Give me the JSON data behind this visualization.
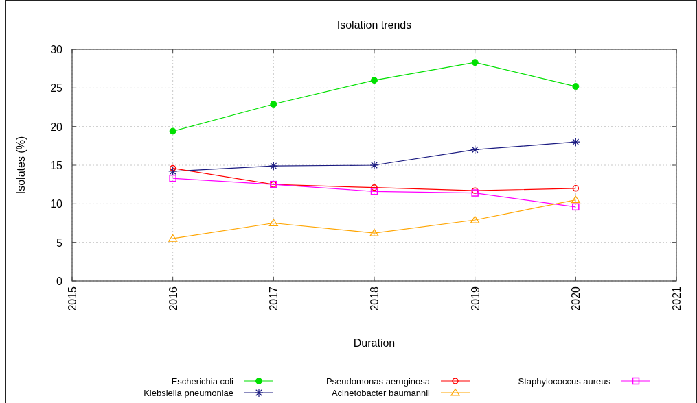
{
  "chart_data": {
    "type": "line",
    "title": "Isolation trends",
    "xlabel": "Duration",
    "ylabel": "Isolates (%)",
    "x": [
      2016,
      2017,
      2018,
      2019,
      2020
    ],
    "xlim": [
      2015,
      2021
    ],
    "xticks": [
      2015,
      2016,
      2017,
      2018,
      2019,
      2020,
      2021
    ],
    "ylim": [
      0,
      30
    ],
    "yticks": [
      0,
      5,
      10,
      15,
      20,
      25,
      30
    ],
    "grid": true,
    "legend": "bottom",
    "line_style": "solid",
    "series": [
      {
        "name": "Escherichia coli",
        "color": "#00e000",
        "marker": "circle",
        "values": [
          19.4,
          22.9,
          26.0,
          28.3,
          25.2
        ]
      },
      {
        "name": "Klebsiella pneumoniae",
        "color": "#1a1a80",
        "marker": "cross",
        "values": [
          14.2,
          14.9,
          15.0,
          17.0,
          18.0
        ]
      },
      {
        "name": "Pseudomonas aeruginosa",
        "color": "#ff0000",
        "marker": "circle",
        "values": [
          14.6,
          12.5,
          12.1,
          11.7,
          12.0
        ]
      },
      {
        "name": "Acinetobacter baumannii",
        "color": "#ffa500",
        "marker": "triangle",
        "values": [
          5.5,
          7.5,
          6.2,
          7.9,
          10.5
        ]
      },
      {
        "name": "Staphylococcus aureus",
        "color": "#ff00ff",
        "marker": "square",
        "values": [
          13.3,
          12.5,
          11.6,
          11.4,
          9.6
        ]
      }
    ]
  }
}
